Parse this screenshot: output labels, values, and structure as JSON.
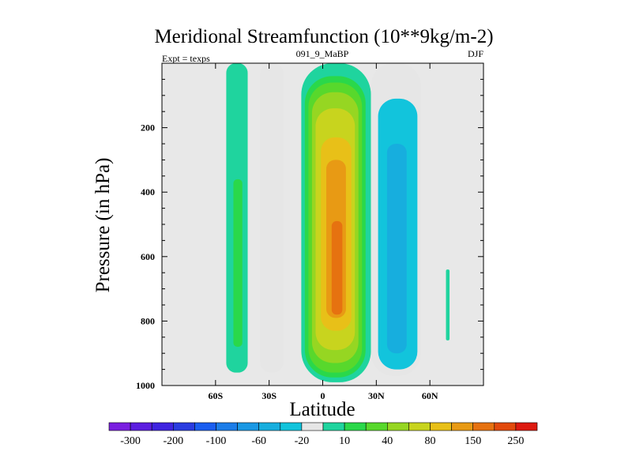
{
  "chart_data": {
    "type": "contour",
    "title": "Meridional Streamfunction (10**9kg/m-2)",
    "subtitle_left": "Expt = texps",
    "subtitle_center": "091_9_MaBP",
    "subtitle_right": "DJF",
    "xlabel": "Latitude",
    "ylabel": "Pressure (in hPa)",
    "xlim": [
      -90,
      90
    ],
    "ylim": [
      1000,
      0
    ],
    "x_ticks": [
      {
        "value": -60,
        "label": "60S"
      },
      {
        "value": -30,
        "label": "30S"
      },
      {
        "value": 0,
        "label": "0"
      },
      {
        "value": 30,
        "label": "30N"
      },
      {
        "value": 60,
        "label": "60N"
      }
    ],
    "y_ticks": [
      {
        "value": 200,
        "label": "200"
      },
      {
        "value": 400,
        "label": "400"
      },
      {
        "value": 600,
        "label": "600"
      },
      {
        "value": 800,
        "label": "800"
      },
      {
        "value": 1000,
        "label": "1000"
      }
    ],
    "background_color": "#e8e8e8",
    "colorbar": {
      "levels": [
        -300,
        -250,
        -200,
        -150,
        -100,
        -80,
        -60,
        -40,
        -20,
        -10,
        10,
        20,
        40,
        60,
        80,
        100,
        150,
        200,
        250,
        300
      ],
      "labels": [
        "-300",
        "-200",
        "-100",
        "-60",
        "-20",
        "10",
        "40",
        "80",
        "150",
        "250"
      ],
      "colors": [
        "#7a1fe0",
        "#5c1ee0",
        "#3f24e0",
        "#2a3ce0",
        "#1a5ef0",
        "#1c7de8",
        "#1a98e4",
        "#17aede",
        "#12c4dc",
        "#e6e6e6",
        "#1fd49e",
        "#2ad84a",
        "#58d82c",
        "#96d622",
        "#c8d41e",
        "#e8c018",
        "#e89a14",
        "#e67210",
        "#e24a0c",
        "#dd1a10"
      ]
    },
    "regions": [
      {
        "name": "sh-outer-cell",
        "level": 10,
        "lat": [
          -54,
          -42
        ],
        "p_top": 0,
        "p_bottom": 960
      },
      {
        "name": "sh-outer-cell-core",
        "level": 20,
        "lat": [
          -50,
          -45
        ],
        "p_top": 360,
        "p_bottom": 880
      },
      {
        "name": "sh-ferrel-cell",
        "level": -10,
        "lat": [
          -35,
          -22
        ],
        "p_top": 0,
        "p_bottom": 960
      },
      {
        "name": "hadley-cell",
        "level": 10,
        "lat": [
          -12,
          27
        ],
        "p_top": 0,
        "p_bottom": 990
      },
      {
        "name": "hadley-cell",
        "level": 20,
        "lat": [
          -10,
          24
        ],
        "p_top": 40,
        "p_bottom": 975
      },
      {
        "name": "hadley-cell",
        "level": 40,
        "lat": [
          -8,
          22
        ],
        "p_top": 60,
        "p_bottom": 960
      },
      {
        "name": "hadley-cell",
        "level": 60,
        "lat": [
          -6,
          20
        ],
        "p_top": 90,
        "p_bottom": 930
      },
      {
        "name": "hadley-cell",
        "level": 80,
        "lat": [
          -4,
          18
        ],
        "p_top": 140,
        "p_bottom": 890
      },
      {
        "name": "hadley-cell",
        "level": 100,
        "lat": [
          -1,
          16
        ],
        "p_top": 230,
        "p_bottom": 830
      },
      {
        "name": "hadley-cell",
        "level": 150,
        "lat": [
          2,
          13
        ],
        "p_top": 300,
        "p_bottom": 790
      },
      {
        "name": "hadley-cell-core",
        "level": 200,
        "lat": [
          5,
          11
        ],
        "p_top": 490,
        "p_bottom": 780
      },
      {
        "name": "nh-ferrel-cell",
        "level": -10,
        "lat": [
          27,
          55
        ],
        "p_top": 0,
        "p_bottom": 970
      },
      {
        "name": "nh-ferrel-cell",
        "level": -20,
        "lat": [
          31,
          53
        ],
        "p_top": 110,
        "p_bottom": 950
      },
      {
        "name": "nh-ferrel-cell-core",
        "level": -40,
        "lat": [
          36,
          47
        ],
        "p_top": 250,
        "p_bottom": 900
      },
      {
        "name": "nh-polar-cell",
        "level": 10,
        "lat": [
          69,
          71
        ],
        "p_top": 640,
        "p_bottom": 860
      }
    ]
  }
}
